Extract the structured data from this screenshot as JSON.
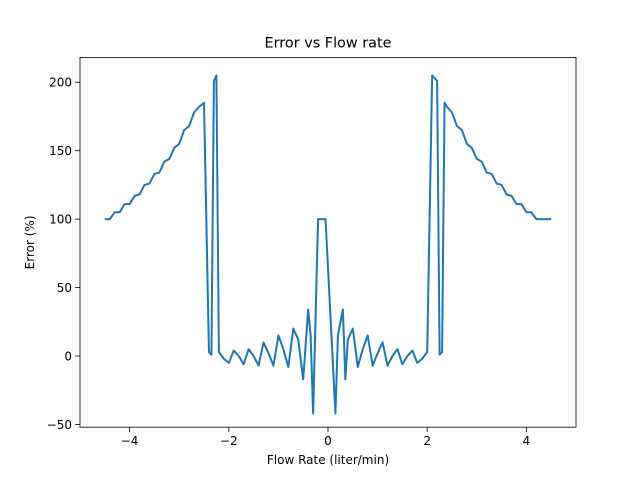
{
  "chart_data": {
    "type": "line",
    "title": "Error vs Flow rate",
    "xlabel": "Flow Rate (liter/min)",
    "ylabel": "Error (%)",
    "xlim": [
      -5.0,
      5.0
    ],
    "ylim": [
      -52,
      218
    ],
    "xticks": [
      -4,
      -2,
      0,
      2,
      4
    ],
    "xtick_labels": [
      "−4",
      "−2",
      "0",
      "2",
      "4"
    ],
    "yticks": [
      -50,
      0,
      50,
      100,
      150,
      200
    ],
    "ytick_labels": [
      "−50",
      "0",
      "50",
      "100",
      "150",
      "200"
    ],
    "grid": false,
    "legend": false,
    "line_color": "#1f77b4",
    "series": [
      {
        "x": [
          -4.5,
          -4.4,
          -4.3,
          -4.2,
          -4.1,
          -4.0,
          -3.9,
          -3.8,
          -3.7,
          -3.6,
          -3.5,
          -3.4,
          -3.3,
          -3.2,
          -3.1,
          -3.0,
          -2.9,
          -2.8,
          -2.7,
          -2.6,
          -2.5,
          -2.4,
          -2.35,
          -2.3,
          -2.25,
          -2.2,
          -2.1,
          -2.0,
          -1.9,
          -1.8,
          -1.7,
          -1.6,
          -1.5,
          -1.4,
          -1.3,
          -1.2,
          -1.1,
          -1.0,
          -0.9,
          -0.8,
          -0.7,
          -0.6,
          -0.5,
          -0.4,
          -0.35,
          -0.3,
          -0.2,
          -0.1,
          -0.05,
          0.15,
          0.2,
          0.3,
          0.35,
          0.4,
          0.5,
          0.6,
          0.7,
          0.8,
          0.9,
          1.0,
          1.1,
          1.2,
          1.3,
          1.4,
          1.5,
          1.6,
          1.7,
          1.8,
          1.9,
          2.0,
          2.1,
          2.2,
          2.25,
          2.3,
          2.35,
          2.4,
          2.5,
          2.6,
          2.7,
          2.8,
          2.9,
          3.0,
          3.1,
          3.2,
          3.3,
          3.4,
          3.5,
          3.6,
          3.7,
          3.8,
          3.9,
          4.0,
          4.1,
          4.2,
          4.3,
          4.4,
          4.5
        ],
        "y": [
          100,
          100,
          105,
          105,
          111,
          111,
          117,
          118,
          125,
          126,
          133,
          134,
          142,
          144,
          152,
          155,
          165,
          168,
          178,
          182,
          185,
          3,
          1,
          201,
          205,
          3,
          -2,
          -5,
          4,
          0,
          -6,
          5,
          0,
          -7,
          10,
          2,
          -7,
          15,
          5,
          -8,
          20,
          12,
          -17,
          34,
          15,
          -42,
          100,
          100,
          100,
          -42,
          15,
          34,
          -17,
          12,
          20,
          -8,
          5,
          15,
          -7,
          2,
          10,
          -7,
          0,
          5,
          -6,
          0,
          4,
          -5,
          -2,
          3,
          205,
          201,
          1,
          3,
          185,
          182,
          178,
          168,
          165,
          155,
          152,
          144,
          142,
          134,
          133,
          126,
          125,
          118,
          117,
          111,
          111,
          105,
          105,
          100,
          100,
          100,
          100
        ]
      }
    ]
  }
}
